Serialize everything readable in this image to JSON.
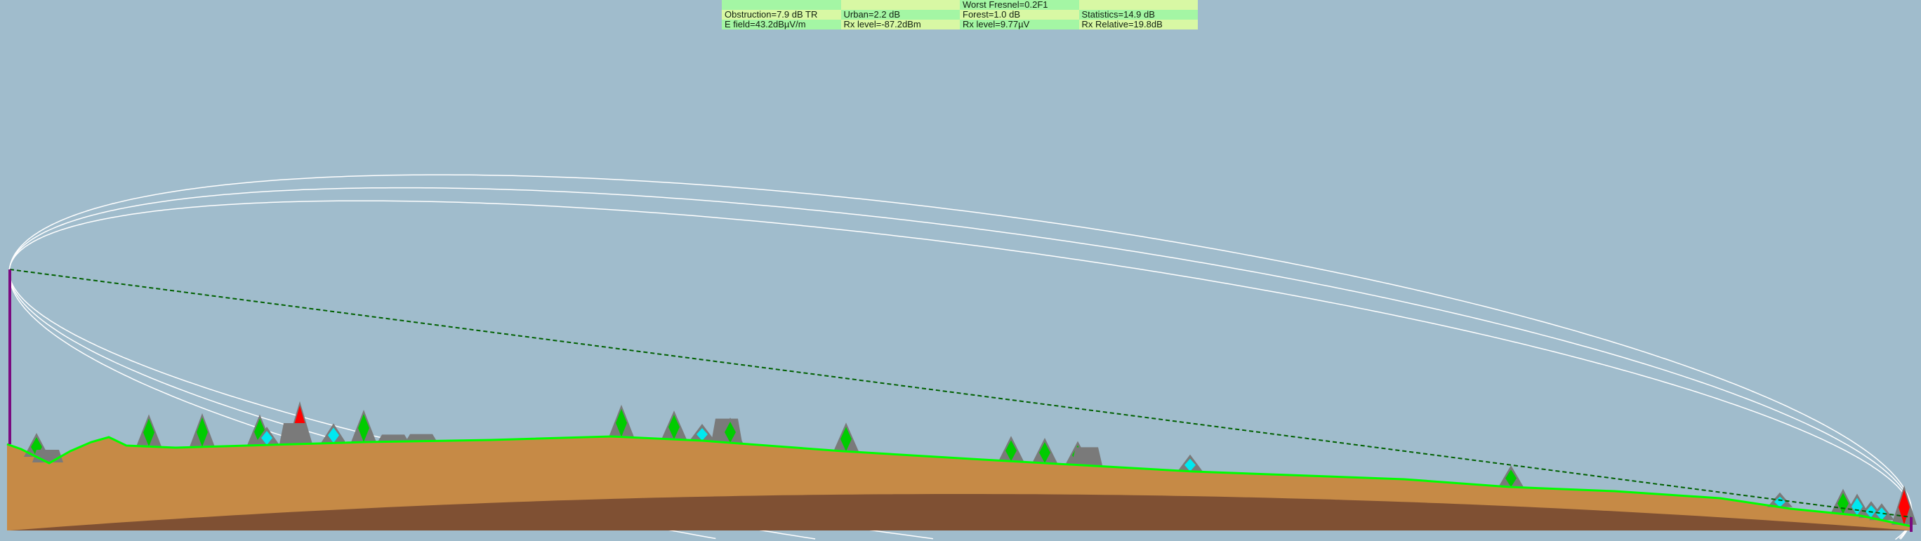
{
  "results": {
    "rows": [
      [
        "",
        "",
        "Worst Fresnel=0.2F1",
        ""
      ],
      [
        "Obstruction=7.9 dB TR",
        "Urban=2.2 dB",
        "Forest=1.0 dB",
        "Statistics=14.9 dB"
      ],
      [
        "E field=43.2dBµV/m",
        "Rx level=-87.2dBm",
        "Rx level=9.77µV",
        "Rx Relative=19.8dB"
      ]
    ]
  },
  "colors": {
    "sky": "#a0bccc",
    "ground": "#c68a46",
    "earth_curvature": "#7f5033",
    "terrain_line": "#00ff00",
    "fresnel": "#ffffff",
    "los_line": "#006000",
    "antenna_mast": "#7a0a80",
    "tree": "#00cc00",
    "building": "#7a7a7a",
    "obstruction": "#ff0000",
    "water_tower": "#00e8f0"
  }
}
